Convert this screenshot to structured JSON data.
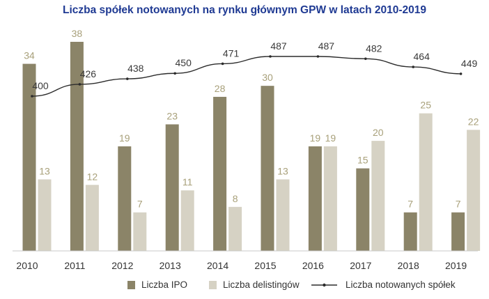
{
  "chart_data": {
    "type": "bar",
    "title": "Liczba spółek notowanych na rynku głównym GPW w latach 2010-2019",
    "categories": [
      "2010",
      "2011",
      "2012",
      "2013",
      "2014",
      "2015",
      "2016",
      "2017",
      "2018",
      "2019"
    ],
    "series": [
      {
        "name": "Liczba IPO",
        "type": "bar",
        "color": "#8b8468",
        "label_color": "#a8a07a",
        "values": [
          34,
          38,
          19,
          23,
          28,
          30,
          19,
          15,
          7,
          7
        ]
      },
      {
        "name": "Liczba delistingów",
        "type": "bar",
        "color": "#d6d2c4",
        "label_color": "#a8a07a",
        "values": [
          13,
          12,
          7,
          11,
          8,
          13,
          19,
          20,
          25,
          22
        ]
      },
      {
        "name": "Liczba notowanych spółek",
        "type": "line",
        "color": "#2b2b2b",
        "label_color": "#3a3a3a",
        "values": [
          400,
          426,
          438,
          450,
          471,
          487,
          487,
          482,
          464,
          449
        ]
      }
    ],
    "bar_ylim": [
      0,
      38
    ],
    "line_ylim": [
      400,
      487
    ],
    "grid": false,
    "legend": "bottom"
  }
}
